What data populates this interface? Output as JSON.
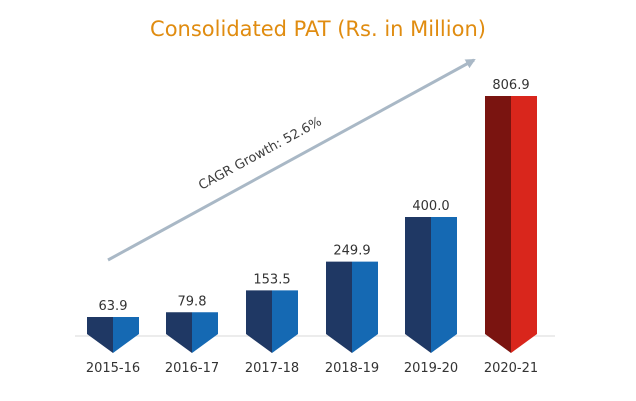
{
  "chart_data": {
    "type": "bar",
    "title": "Consolidated PAT (Rs. in Million)",
    "categories": [
      "2015-16",
      "2016-17",
      "2017-18",
      "2018-19",
      "2019-20",
      "2020-21"
    ],
    "values": [
      63.9,
      79.8,
      153.5,
      249.9,
      400.0,
      806.9
    ],
    "value_labels": [
      "63.9",
      "79.8",
      "153.5",
      "249.9",
      "400.0",
      "806.9"
    ],
    "annotation": "CAGR Growth: 52.6%",
    "xlabel": "",
    "ylabel": "",
    "ylim": [
      0,
      806.9
    ],
    "grid": false,
    "legend": "none",
    "colors": {
      "title": "#E08C10",
      "bar_dark": "#1F3864",
      "bar_light": "#1569B3",
      "highlight_dark": "#7A1410",
      "highlight_light": "#D9261C",
      "arrow": "#A9B8C6",
      "baseline": "#D9D9D9"
    },
    "highlight_index": 5
  }
}
